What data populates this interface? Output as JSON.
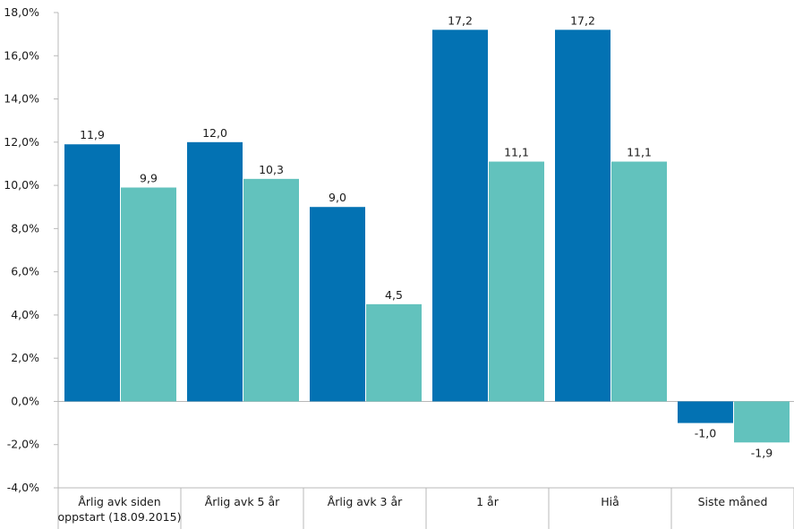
{
  "chart_data": {
    "type": "bar",
    "title": "",
    "xlabel": "",
    "ylabel": "",
    "ylim": [
      -4.0,
      18.0
    ],
    "ytick_step": 2.0,
    "yticks": [
      "-4,0%",
      "-2,0%",
      "0,0%",
      "2,0%",
      "4,0%",
      "6,0%",
      "8,0%",
      "10,0%",
      "12,0%",
      "14,0%",
      "16,0%",
      "18,0%"
    ],
    "categories": [
      [
        "Årlig avk siden",
        "oppstart (18.09.2015)"
      ],
      [
        "Årlig avk 5 år"
      ],
      [
        "Årlig avk 3 år"
      ],
      [
        "1 år"
      ],
      [
        "Hiå"
      ],
      [
        "Siste måned"
      ]
    ],
    "series": [
      {
        "color": "#0372b3",
        "values": [
          11.9,
          12.0,
          9.0,
          17.2,
          17.2,
          -1.0
        ],
        "labels": [
          "11,9",
          "12,0",
          "9,0",
          "17,2",
          "17,2",
          "-1,0"
        ]
      },
      {
        "color": "#62c2bd",
        "values": [
          9.9,
          10.3,
          4.5,
          11.1,
          11.1,
          -1.9
        ],
        "labels": [
          "9,9",
          "10,3",
          "4,5",
          "11,1",
          "11,1",
          "-1,9"
        ]
      }
    ],
    "grid": false,
    "legend": "none"
  }
}
